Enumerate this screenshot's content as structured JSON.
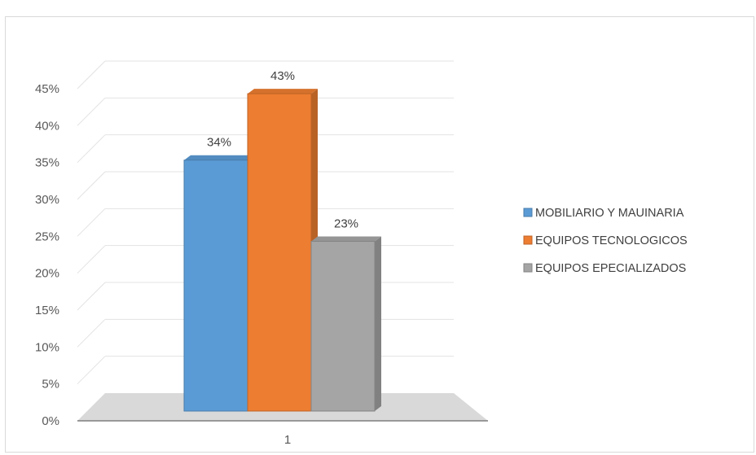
{
  "chart_data": {
    "type": "bar",
    "categories": [
      "1"
    ],
    "series": [
      {
        "name": "MOBILIARIO Y MAUINARIA",
        "values": [
          0.34
        ],
        "label": "34%",
        "color": "#5b9bd5"
      },
      {
        "name": "EQUIPOS TECNOLOGICOS",
        "values": [
          0.43
        ],
        "label": "43%",
        "color": "#ed7d31"
      },
      {
        "name": "EQUIPOS EPECIALIZADOS",
        "values": [
          0.23
        ],
        "label": "23%",
        "color": "#a5a5a5"
      }
    ],
    "yticks": [
      "0%",
      "5%",
      "10%",
      "15%",
      "20%",
      "25%",
      "30%",
      "35%",
      "40%",
      "45%"
    ],
    "ylim": [
      0,
      0.45
    ],
    "grid": true,
    "legend": "right",
    "style": "3d-clustered-column",
    "title": "",
    "xlabel": "",
    "ylabel": ""
  }
}
